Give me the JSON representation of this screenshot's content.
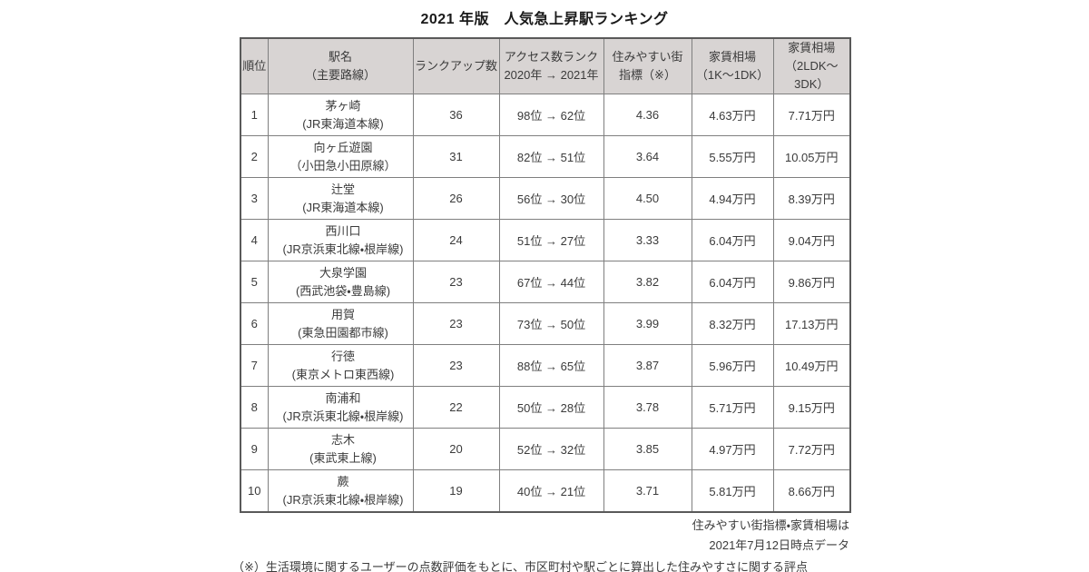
{
  "chart_data": {
    "type": "table",
    "title": "2021 年版　人気急上昇駅ランキング",
    "columns": [
      {
        "line1": "順位",
        "line2": ""
      },
      {
        "line1": "駅名",
        "line2": "（主要路線）"
      },
      {
        "line1": "ランクアップ数",
        "line2": ""
      },
      {
        "line1": "アクセス数ランク",
        "line2": "2020年 → 2021年"
      },
      {
        "line1": "住みやすい街",
        "line2": "指標（※）"
      },
      {
        "line1": "家賃相場",
        "line2": "（1K～1DK）"
      },
      {
        "line1": "家賃相場",
        "line2": "（2LDK～3DK）"
      }
    ],
    "rows": [
      {
        "rank": "1",
        "station": "茅ヶ崎",
        "line": "(JR東海道本線)",
        "rank_up": "36",
        "access": "98位 → 62位",
        "index": "4.36",
        "rent_1k_1dk": "4.63万円",
        "rent_2ldk_3dk": "7.71万円"
      },
      {
        "rank": "2",
        "station": "向ヶ丘遊園",
        "line": "（小田急小田原線）",
        "rank_up": "31",
        "access": "82位 → 51位",
        "index": "3.64",
        "rent_1k_1dk": "5.55万円",
        "rent_2ldk_3dk": "10.05万円"
      },
      {
        "rank": "3",
        "station": "辻堂",
        "line": "(JR東海道本線)",
        "rank_up": "26",
        "access": "56位 → 30位",
        "index": "4.50",
        "rent_1k_1dk": "4.94万円",
        "rent_2ldk_3dk": "8.39万円"
      },
      {
        "rank": "4",
        "station": "西川口",
        "line": "(JR京浜東北線・根岸線)",
        "rank_up": "24",
        "access": "51位 → 27位",
        "index": "3.33",
        "rent_1k_1dk": "6.04万円",
        "rent_2ldk_3dk": "9.04万円"
      },
      {
        "rank": "5",
        "station": "大泉学園",
        "line": "(西武池袋・豊島線)",
        "rank_up": "23",
        "access": "67位 → 44位",
        "index": "3.82",
        "rent_1k_1dk": "6.04万円",
        "rent_2ldk_3dk": "9.86万円"
      },
      {
        "rank": "6",
        "station": "用賀",
        "line": "(東急田園都市線)",
        "rank_up": "23",
        "access": "73位 → 50位",
        "index": "3.99",
        "rent_1k_1dk": "8.32万円",
        "rent_2ldk_3dk": "17.13万円"
      },
      {
        "rank": "7",
        "station": "行徳",
        "line": "(東京メトロ東西線)",
        "rank_up": "23",
        "access": "88位 → 65位",
        "index": "3.87",
        "rent_1k_1dk": "5.96万円",
        "rent_2ldk_3dk": "10.49万円"
      },
      {
        "rank": "8",
        "station": "南浦和",
        "line": "(JR京浜東北線・根岸線)",
        "rank_up": "22",
        "access": "50位 → 28位",
        "index": "3.78",
        "rent_1k_1dk": "5.71万円",
        "rent_2ldk_3dk": "9.15万円"
      },
      {
        "rank": "9",
        "station": "志木",
        "line": "(東武東上線)",
        "rank_up": "20",
        "access": "52位 → 32位",
        "index": "3.85",
        "rent_1k_1dk": "4.97万円",
        "rent_2ldk_3dk": "7.72万円"
      },
      {
        "rank": "10",
        "station": "蕨",
        "line": "(JR京浜東北線・根岸線)",
        "rank_up": "19",
        "access": "40位 → 21位",
        "index": "3.71",
        "rent_1k_1dk": "5.81万円",
        "rent_2ldk_3dk": "8.66万円"
      }
    ],
    "notes": {
      "right_line1": "住みやすい街指標・家賃相場は",
      "right_line2": "2021年7月12日時点データ",
      "left_note": "（※）生活環境に関するユーザーの点数評価をもとに、市区町村や駅ごとに算出した住みやすさに関する評点"
    },
    "colors": {
      "header_bg": "#d8d4d3",
      "border_inner": "#7f7f7f",
      "border_outer": "#595959",
      "text": "#3b3b3b"
    }
  }
}
